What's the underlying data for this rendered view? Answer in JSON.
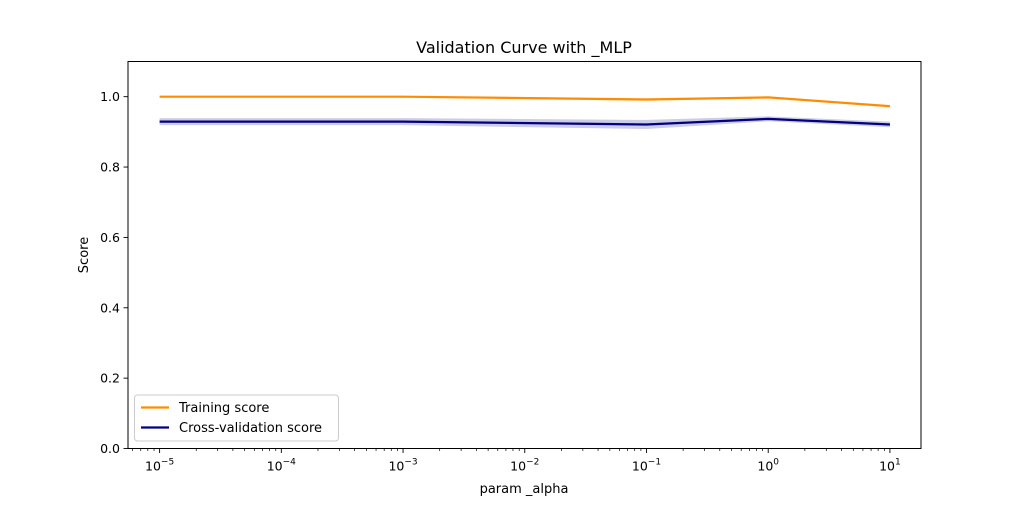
{
  "chart_data": {
    "type": "line",
    "title": "Validation Curve with _MLP",
    "xlabel": "param _alpha",
    "ylabel": "Score",
    "xscale": "log",
    "xlim": [
      5.5e-06,
      18
    ],
    "ylim": [
      0.0,
      1.1
    ],
    "x": [
      1e-05,
      0.001,
      0.1,
      1,
      10
    ],
    "x_tick_labels": [
      {
        "value": 1e-05,
        "base": "10",
        "exp": "−5"
      },
      {
        "value": 0.0001,
        "base": "10",
        "exp": "−4"
      },
      {
        "value": 0.001,
        "base": "10",
        "exp": "−3"
      },
      {
        "value": 0.01,
        "base": "10",
        "exp": "−2"
      },
      {
        "value": 0.1,
        "base": "10",
        "exp": "−1"
      },
      {
        "value": 1,
        "base": "10",
        "exp": "0"
      },
      {
        "value": 10,
        "base": "10",
        "exp": "1"
      }
    ],
    "y_ticks": [
      {
        "value": 0.0,
        "label": "0.0"
      },
      {
        "value": 0.2,
        "label": "0.2"
      },
      {
        "value": 0.4,
        "label": "0.4"
      },
      {
        "value": 0.6,
        "label": "0.6"
      },
      {
        "value": 0.8,
        "label": "0.8"
      },
      {
        "value": 1.0,
        "label": "1.0"
      }
    ],
    "series": [
      {
        "name": "Training score",
        "color": "#ff8c00",
        "band_color": "#ff8c00",
        "values": [
          1.0,
          1.0,
          0.992,
          0.998,
          0.973
        ],
        "std": [
          0.001,
          0.001,
          0.004,
          0.002,
          0.004
        ]
      },
      {
        "name": "Cross-validation score",
        "color": "#000080",
        "band_color": "#000080",
        "values": [
          0.929,
          0.929,
          0.921,
          0.937,
          0.921
        ],
        "std": [
          0.01,
          0.01,
          0.013,
          0.007,
          0.008
        ]
      }
    ],
    "legend_position": "lower-left"
  }
}
